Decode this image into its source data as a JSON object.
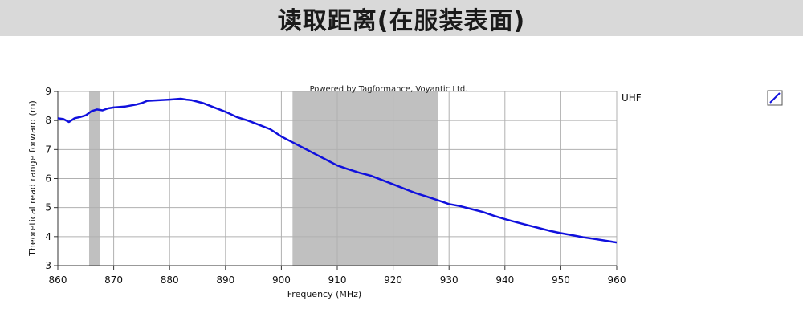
{
  "page_title": "读取距离(在服装表面)",
  "chart_data": {
    "type": "line",
    "credit": "Powered by Tagformance, Voyantic Ltd.",
    "xlabel": "Frequency (MHz)",
    "ylabel": "Theoretical read range forward (m)",
    "xlim": [
      860,
      960
    ],
    "ylim": [
      3,
      9
    ],
    "x_ticks": [
      860,
      870,
      880,
      890,
      900,
      910,
      920,
      930,
      940,
      950,
      960
    ],
    "y_ticks": [
      3,
      4,
      5,
      6,
      7,
      8,
      9
    ],
    "grid": true,
    "legend_position": "right",
    "shaded_bands": [
      {
        "from": 865.6,
        "to": 867.6,
        "color": "#c0c0c0"
      },
      {
        "from": 902,
        "to": 928,
        "color": "#c0c0c0"
      }
    ],
    "series": [
      {
        "name": "UHF",
        "color": "#1010dd",
        "x": [
          860,
          861,
          862,
          863,
          864,
          865,
          866,
          867,
          868,
          869,
          870,
          872,
          874,
          875,
          876,
          878,
          880,
          882,
          883,
          884,
          886,
          888,
          890,
          892,
          894,
          896,
          898,
          900,
          902,
          904,
          906,
          908,
          910,
          912,
          914,
          916,
          918,
          920,
          922,
          924,
          926,
          928,
          930,
          932,
          934,
          936,
          938,
          940,
          942,
          944,
          946,
          948,
          950,
          952,
          954,
          956,
          958,
          960
        ],
        "y": [
          8.08,
          8.05,
          7.95,
          8.08,
          8.12,
          8.18,
          8.32,
          8.38,
          8.35,
          8.42,
          8.45,
          8.48,
          8.55,
          8.6,
          8.68,
          8.7,
          8.72,
          8.75,
          8.72,
          8.7,
          8.6,
          8.45,
          8.3,
          8.12,
          8.0,
          7.85,
          7.7,
          7.45,
          7.25,
          7.05,
          6.85,
          6.65,
          6.45,
          6.32,
          6.2,
          6.1,
          5.95,
          5.8,
          5.65,
          5.5,
          5.38,
          5.25,
          5.12,
          5.05,
          4.95,
          4.85,
          4.72,
          4.6,
          4.5,
          4.4,
          4.3,
          4.2,
          4.12,
          4.05,
          3.98,
          3.92,
          3.86,
          3.8
        ]
      }
    ]
  }
}
